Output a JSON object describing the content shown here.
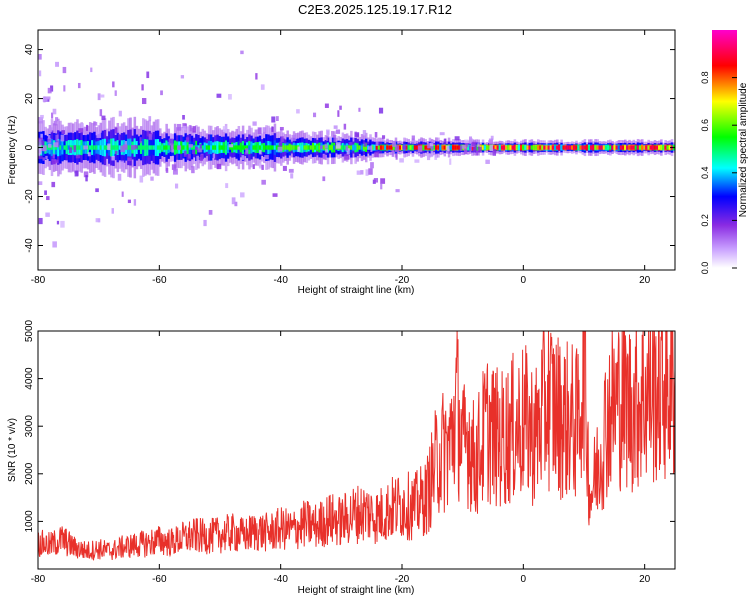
{
  "title": "C2E3.2025.125.19.17.R12",
  "chart_data": [
    {
      "type": "heatmap",
      "xlabel": "Height of straight line (km)",
      "ylabel": "Frequency (Hz)",
      "xlim": [
        -80,
        25
      ],
      "ylim": [
        -50,
        48
      ],
      "xticks": [
        -80,
        -60,
        -40,
        -20,
        0,
        20
      ],
      "yticks": [
        -40,
        -20,
        0,
        20,
        40
      ],
      "colorbar": {
        "label": "Normalized spectral amplitude",
        "range": [
          0,
          1
        ],
        "ticks": [
          "0.0",
          "0.2",
          "0.4",
          "0.6",
          "0.8"
        ],
        "colors": [
          "#ffffff",
          "#8a2be2",
          "#0000ff",
          "#00ffff",
          "#00ff00",
          "#ffff00",
          "#ff0000",
          "#ff00cc"
        ]
      },
      "band": {
        "center_hz": 0,
        "segments": [
          {
            "x_start": -80,
            "x_end": -60,
            "halfwidth_hz": 9,
            "peak_amplitude": 0.5
          },
          {
            "x_start": -60,
            "x_end": -40,
            "halfwidth_hz": 7,
            "peak_amplitude": 0.55
          },
          {
            "x_start": -40,
            "x_end": -25,
            "halfwidth_hz": 5,
            "peak_amplitude": 0.6
          },
          {
            "x_start": -25,
            "x_end": -10,
            "halfwidth_hz": 3,
            "peak_amplitude": 0.85
          },
          {
            "x_start": -10,
            "x_end": 25,
            "halfwidth_hz": 2.5,
            "peak_amplitude": 0.9
          }
        ]
      },
      "grid": false
    },
    {
      "type": "line",
      "xlabel": "Height of straight line (km)",
      "ylabel": "SNR (10 * v/v)",
      "xlim": [
        -80,
        25
      ],
      "ylim": [
        0,
        5000
      ],
      "xticks": [
        -80,
        -60,
        -40,
        -20,
        0,
        20
      ],
      "yticks": [
        1000,
        2000,
        3000,
        4000,
        5000
      ],
      "grid": false,
      "series": [
        {
          "color": "#e8302a",
          "x": [
            -80,
            -78,
            -76,
            -74,
            -72,
            -70,
            -68,
            -66,
            -64,
            -62,
            -60,
            -58,
            -56,
            -54,
            -52,
            -50,
            -48,
            -46,
            -44,
            -42,
            -40,
            -38,
            -36,
            -34,
            -32,
            -30,
            -28,
            -26,
            -24,
            -22,
            -20,
            -18,
            -16,
            -14,
            -12,
            -11,
            -10,
            -9,
            -8,
            -6,
            -4,
            -2,
            0,
            2,
            4,
            6,
            8,
            9,
            10,
            10.5,
            11,
            12,
            14,
            16,
            18,
            20,
            22,
            24,
            25
          ],
          "y": [
            550,
            500,
            620,
            450,
            380,
            420,
            380,
            460,
            500,
            540,
            600,
            560,
            650,
            700,
            680,
            720,
            760,
            700,
            800,
            760,
            850,
            820,
            950,
            900,
            1050,
            1000,
            1150,
            1200,
            1100,
            1250,
            1350,
            1300,
            1500,
            2400,
            2600,
            3500,
            2500,
            2800,
            2200,
            3000,
            2700,
            2900,
            3100,
            2800,
            3600,
            3200,
            3100,
            3000,
            4500,
            2800,
            1500,
            2000,
            3300,
            3600,
            3400,
            3700,
            3800,
            3900,
            3700
          ]
        }
      ]
    }
  ]
}
